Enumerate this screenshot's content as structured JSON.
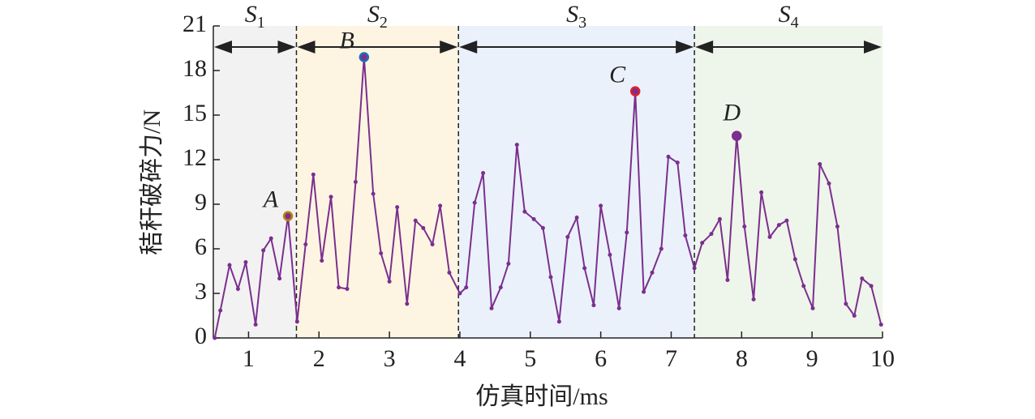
{
  "chart_data": {
    "type": "line",
    "xlabel": "仿真时间/ms",
    "ylabel": "秸秆破碎力/N",
    "xlim": [
      0.5,
      10
    ],
    "ylim": [
      0,
      21
    ],
    "xticks": [
      1,
      2,
      3,
      4,
      5,
      6,
      7,
      8,
      9,
      10
    ],
    "yticks": [
      0,
      3,
      6,
      9,
      12,
      15,
      18,
      21
    ],
    "color": "#7b2f8e",
    "x": [
      0.52,
      0.6,
      0.73,
      0.85,
      0.96,
      1.1,
      1.21,
      1.32,
      1.44,
      1.56,
      1.69,
      1.81,
      1.92,
      2.04,
      2.17,
      2.28,
      2.4,
      2.52,
      2.64,
      2.77,
      2.88,
      3.0,
      3.11,
      3.25,
      3.37,
      3.48,
      3.61,
      3.72,
      3.85,
      4.0,
      4.09,
      4.21,
      4.33,
      4.45,
      4.58,
      4.69,
      4.81,
      4.92,
      5.05,
      5.18,
      5.29,
      5.41,
      5.53,
      5.66,
      5.77,
      5.9,
      6.0,
      6.13,
      6.26,
      6.37,
      6.49,
      6.61,
      6.73,
      6.86,
      6.96,
      7.09,
      7.2,
      7.33,
      7.44,
      7.57,
      7.69,
      7.8,
      7.93,
      8.04,
      8.17,
      8.28,
      8.4,
      8.53,
      8.64,
      8.76,
      8.88,
      9.01,
      9.11,
      9.24,
      9.36,
      9.48,
      9.6,
      9.71,
      9.84,
      9.98
    ],
    "y": [
      0,
      1.85,
      4.9,
      3.3,
      5.1,
      0.9,
      5.9,
      6.7,
      4.0,
      8.2,
      1.1,
      6.3,
      11.0,
      5.2,
      9.5,
      3.4,
      3.3,
      10.5,
      18.9,
      9.7,
      5.7,
      3.8,
      8.8,
      2.3,
      7.9,
      7.4,
      6.3,
      8.9,
      4.4,
      3.0,
      3.4,
      9.1,
      11.1,
      2.0,
      3.4,
      5.0,
      13.0,
      8.5,
      8.0,
      7.4,
      4.1,
      1.1,
      6.8,
      8.1,
      4.7,
      2.2,
      8.9,
      5.6,
      2.0,
      7.1,
      16.6,
      3.1,
      4.4,
      6.0,
      12.2,
      11.8,
      6.9,
      4.7,
      6.4,
      7.0,
      8.0,
      3.9,
      13.6,
      7.5,
      2.6,
      9.8,
      6.8,
      7.6,
      7.9,
      5.3,
      3.5,
      2.0,
      11.7,
      10.4,
      7.5,
      2.3,
      1.5,
      4.0,
      3.5,
      0.9
    ],
    "regions": [
      {
        "label": "S",
        "subscript": "1",
        "start": 0.5,
        "end": 1.68,
        "color": "#f2f2f2"
      },
      {
        "label": "S",
        "subscript": "2",
        "start": 1.68,
        "end": 3.98,
        "color": "#fdf5e1"
      },
      {
        "label": "S",
        "subscript": "3",
        "start": 3.98,
        "end": 7.33,
        "color": "#eaf1fa"
      },
      {
        "label": "S",
        "subscript": "4",
        "start": 7.33,
        "end": 10,
        "color": "#eef5ea"
      }
    ],
    "annotations": [
      {
        "label": "A",
        "x": 1.56,
        "y": 8.2,
        "color": "#b8860b"
      },
      {
        "label": "B",
        "x": 2.64,
        "y": 18.9,
        "color": "#1f6fb5"
      },
      {
        "label": "C",
        "x": 6.49,
        "y": 16.6,
        "color": "#e0202a"
      },
      {
        "label": "D",
        "x": 7.93,
        "y": 13.6,
        "color": "#7b2f8e"
      }
    ]
  }
}
